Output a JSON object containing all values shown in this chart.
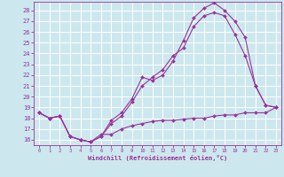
{
  "bg_color": "#cce8ee",
  "line_color": "#993399",
  "grid_color": "#ffffff",
  "xlabel": "Windchill (Refroidissement éolien,°C)",
  "xlim": [
    -0.5,
    23.5
  ],
  "ylim": [
    15.5,
    28.8
  ],
  "xticks": [
    0,
    1,
    2,
    3,
    4,
    5,
    6,
    7,
    8,
    9,
    10,
    11,
    12,
    13,
    14,
    15,
    16,
    17,
    18,
    19,
    20,
    21,
    22,
    23
  ],
  "yticks": [
    16,
    17,
    18,
    19,
    20,
    21,
    22,
    23,
    24,
    25,
    26,
    27,
    28
  ],
  "curve1_x": [
    0,
    1,
    2,
    3,
    4,
    5,
    6,
    7,
    8,
    9,
    10,
    11,
    12,
    13,
    14,
    15,
    16,
    17,
    18,
    19,
    20,
    21,
    22,
    23
  ],
  "curve1_y": [
    18.5,
    18.0,
    18.2,
    16.3,
    16.0,
    15.8,
    16.3,
    17.8,
    18.5,
    19.8,
    21.8,
    21.5,
    22.0,
    23.3,
    25.2,
    27.3,
    28.2,
    28.7,
    28.0,
    27.0,
    25.5,
    21.0,
    19.2,
    19.0
  ],
  "curve2_x": [
    0,
    1,
    2,
    3,
    4,
    5,
    6,
    7,
    8,
    9,
    10,
    11,
    12,
    13,
    14,
    15,
    16,
    17,
    18,
    19,
    20,
    21,
    22,
    23
  ],
  "curve2_y": [
    18.5,
    18.0,
    18.2,
    16.3,
    16.0,
    15.8,
    16.3,
    17.5,
    18.2,
    19.5,
    21.0,
    21.8,
    22.5,
    23.8,
    24.5,
    26.5,
    27.5,
    27.8,
    27.5,
    25.8,
    23.8,
    21.0,
    19.2,
    19.0
  ],
  "curve3_x": [
    0,
    1,
    2,
    3,
    4,
    5,
    6,
    7,
    8,
    9,
    10,
    11,
    12,
    13,
    14,
    15,
    16,
    17,
    18,
    19,
    20,
    21,
    22,
    23
  ],
  "curve3_y": [
    18.5,
    18.0,
    18.2,
    16.3,
    16.0,
    15.8,
    16.5,
    16.5,
    17.0,
    17.3,
    17.5,
    17.7,
    17.8,
    17.8,
    17.9,
    18.0,
    18.0,
    18.2,
    18.3,
    18.3,
    18.5,
    18.5,
    18.5,
    19.0
  ]
}
